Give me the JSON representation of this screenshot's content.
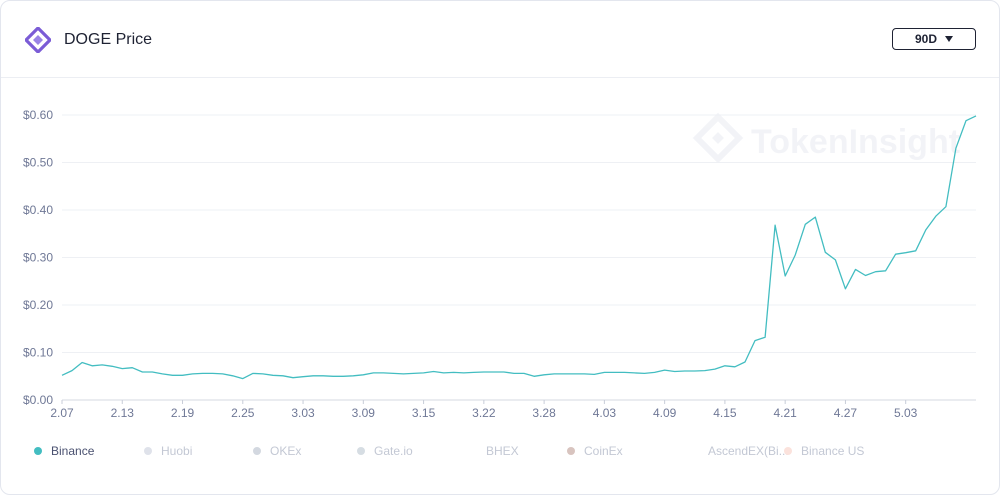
{
  "header": {
    "title": "DOGE Price",
    "period": "90D"
  },
  "watermark": "TokenInsight",
  "colors": {
    "accent": "#43bdc1",
    "logo": "#7b5cd6"
  },
  "legend": [
    {
      "label": "Binance",
      "color": "#43bdc1",
      "active": true
    },
    {
      "label": "Huobi",
      "color": "#dfe2ea",
      "active": false
    },
    {
      "label": "OKEx",
      "color": "#d3d8e0",
      "active": false
    },
    {
      "label": "Gate.io",
      "color": "#d6dde3",
      "active": false
    },
    {
      "label": "BHEX",
      "color": "#ffffff",
      "active": false
    },
    {
      "label": "CoinEx",
      "color": "#d8c4bf",
      "active": false
    },
    {
      "label": "AscendEX(Bi...",
      "color": "#ffffff",
      "active": false
    },
    {
      "label": "Binance US",
      "color": "#fbe2dc",
      "active": false
    }
  ],
  "chart_data": {
    "type": "line",
    "ylim": [
      0,
      0.6
    ],
    "yticks": [
      "$0.00",
      "$0.10",
      "$0.20",
      "$0.30",
      "$0.40",
      "$0.50",
      "$0.60"
    ],
    "xticks": [
      "2.07",
      "2.13",
      "2.19",
      "2.25",
      "3.03",
      "3.09",
      "3.15",
      "3.22",
      "3.28",
      "4.03",
      "4.09",
      "4.15",
      "4.21",
      "4.27",
      "5.03"
    ],
    "grid": true,
    "series": [
      {
        "name": "Binance",
        "values": [
          0.052,
          0.062,
          0.079,
          0.072,
          0.074,
          0.071,
          0.066,
          0.068,
          0.059,
          0.059,
          0.055,
          0.052,
          0.052,
          0.055,
          0.056,
          0.056,
          0.055,
          0.051,
          0.045,
          0.056,
          0.055,
          0.052,
          0.051,
          0.047,
          0.049,
          0.051,
          0.051,
          0.05,
          0.05,
          0.051,
          0.053,
          0.057,
          0.057,
          0.056,
          0.055,
          0.056,
          0.057,
          0.06,
          0.057,
          0.058,
          0.057,
          0.058,
          0.059,
          0.059,
          0.059,
          0.056,
          0.056,
          0.05,
          0.053,
          0.055,
          0.055,
          0.055,
          0.055,
          0.054,
          0.058,
          0.058,
          0.058,
          0.057,
          0.056,
          0.058,
          0.063,
          0.06,
          0.061,
          0.061,
          0.062,
          0.065,
          0.072,
          0.07,
          0.08,
          0.125,
          0.132,
          0.368,
          0.261,
          0.305,
          0.37,
          0.385,
          0.311,
          0.295,
          0.234,
          0.275,
          0.262,
          0.27,
          0.272,
          0.307,
          0.31,
          0.314,
          0.358,
          0.387,
          0.407,
          0.53,
          0.588,
          0.598
        ]
      }
    ]
  }
}
